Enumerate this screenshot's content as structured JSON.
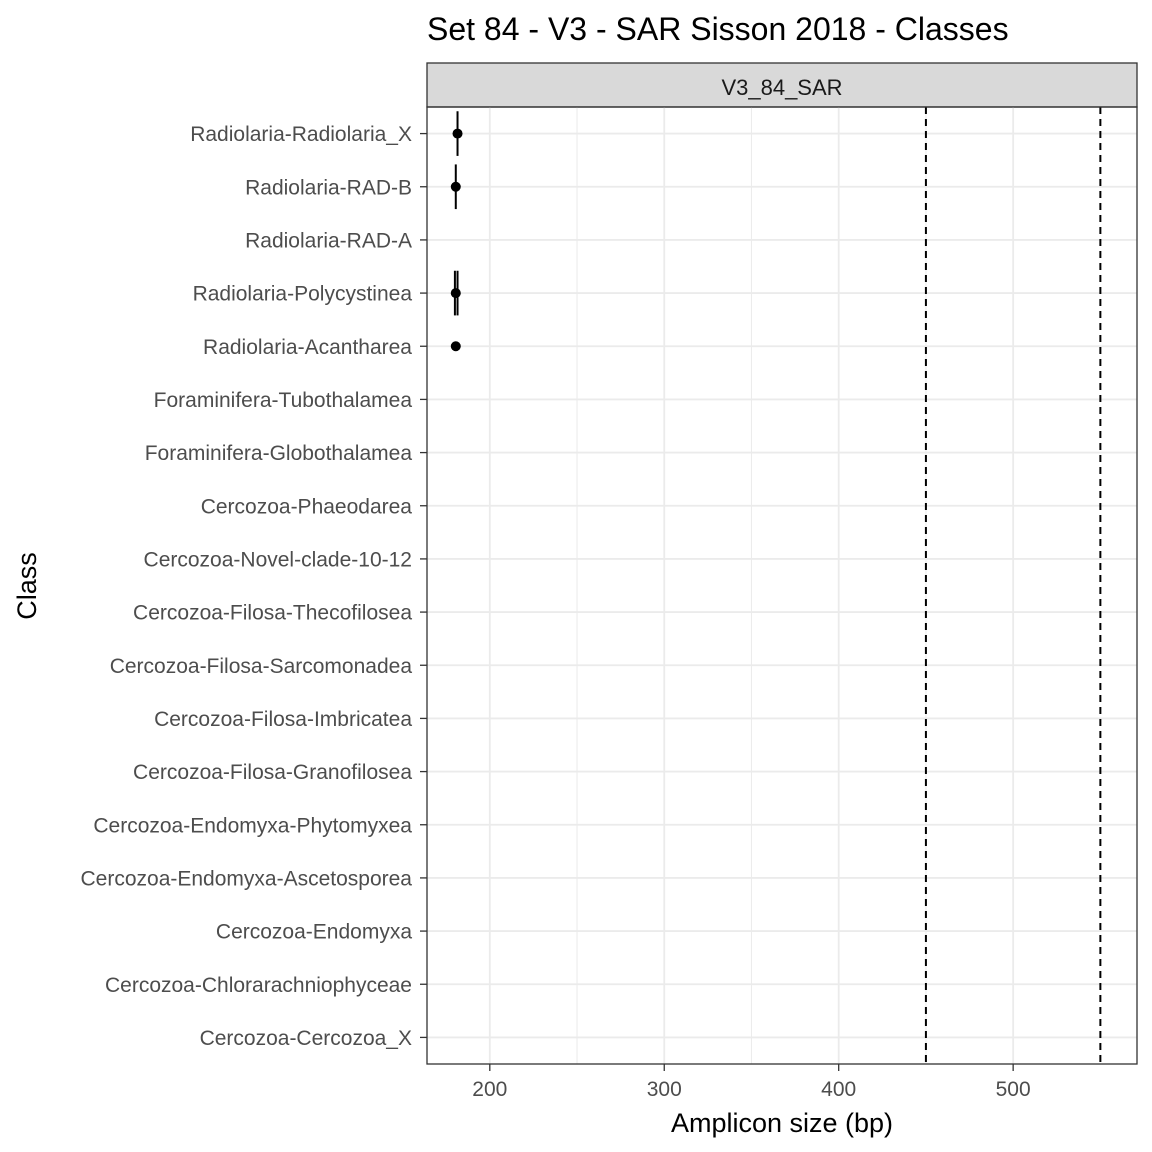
{
  "chart_data": {
    "type": "scatter",
    "title": "Set 84 - V3 - SAR Sisson 2018 - Classes",
    "facet": "V3_84_SAR",
    "xlabel": "Amplicon size (bp)",
    "ylabel": "Class",
    "xlim": [
      164,
      571
    ],
    "xticks": [
      200,
      300,
      400,
      500
    ],
    "grid": true,
    "categories": [
      "Radiolaria-Radiolaria_X",
      "Radiolaria-RAD-B",
      "Radiolaria-RAD-A",
      "Radiolaria-Polycystinea",
      "Radiolaria-Acantharea",
      "Foraminifera-Tubothalamea",
      "Foraminifera-Globothalamea",
      "Cercozoa-Phaeodarea",
      "Cercozoa-Novel-clade-10-12",
      "Cercozoa-Filosa-Thecofilosea",
      "Cercozoa-Filosa-Sarcomonadea",
      "Cercozoa-Filosa-Imbricatea",
      "Cercozoa-Filosa-Granofilosea",
      "Cercozoa-Endomyxa-Phytomyxea",
      "Cercozoa-Endomyxa-Ascetosporea",
      "Cercozoa-Endomyxa",
      "Cercozoa-Chlorarachniophyceae",
      "Cercozoa-Cercozoa_X"
    ],
    "points": [
      {
        "category": "Radiolaria-Radiolaria_X",
        "x": 181.5,
        "lines": [
          181.5
        ],
        "line_half": 0.42
      },
      {
        "category": "Radiolaria-RAD-B",
        "x": 180.5,
        "lines": [
          180.5
        ],
        "line_half": 0.42
      },
      {
        "category": "Radiolaria-Polycystinea",
        "x": 180.5,
        "lines": [
          180,
          181.5
        ],
        "line_half": 0.42
      },
      {
        "category": "Radiolaria-Acantharea",
        "x": 180.5,
        "lines": [],
        "line_half": 0
      }
    ],
    "reference_lines": [
      450,
      550
    ],
    "colors": {
      "points": "#000000",
      "grid": "#ebebeb",
      "strip_fill": "#d9d9d9",
      "border": "#333333",
      "ref_lines": "#000000"
    }
  }
}
